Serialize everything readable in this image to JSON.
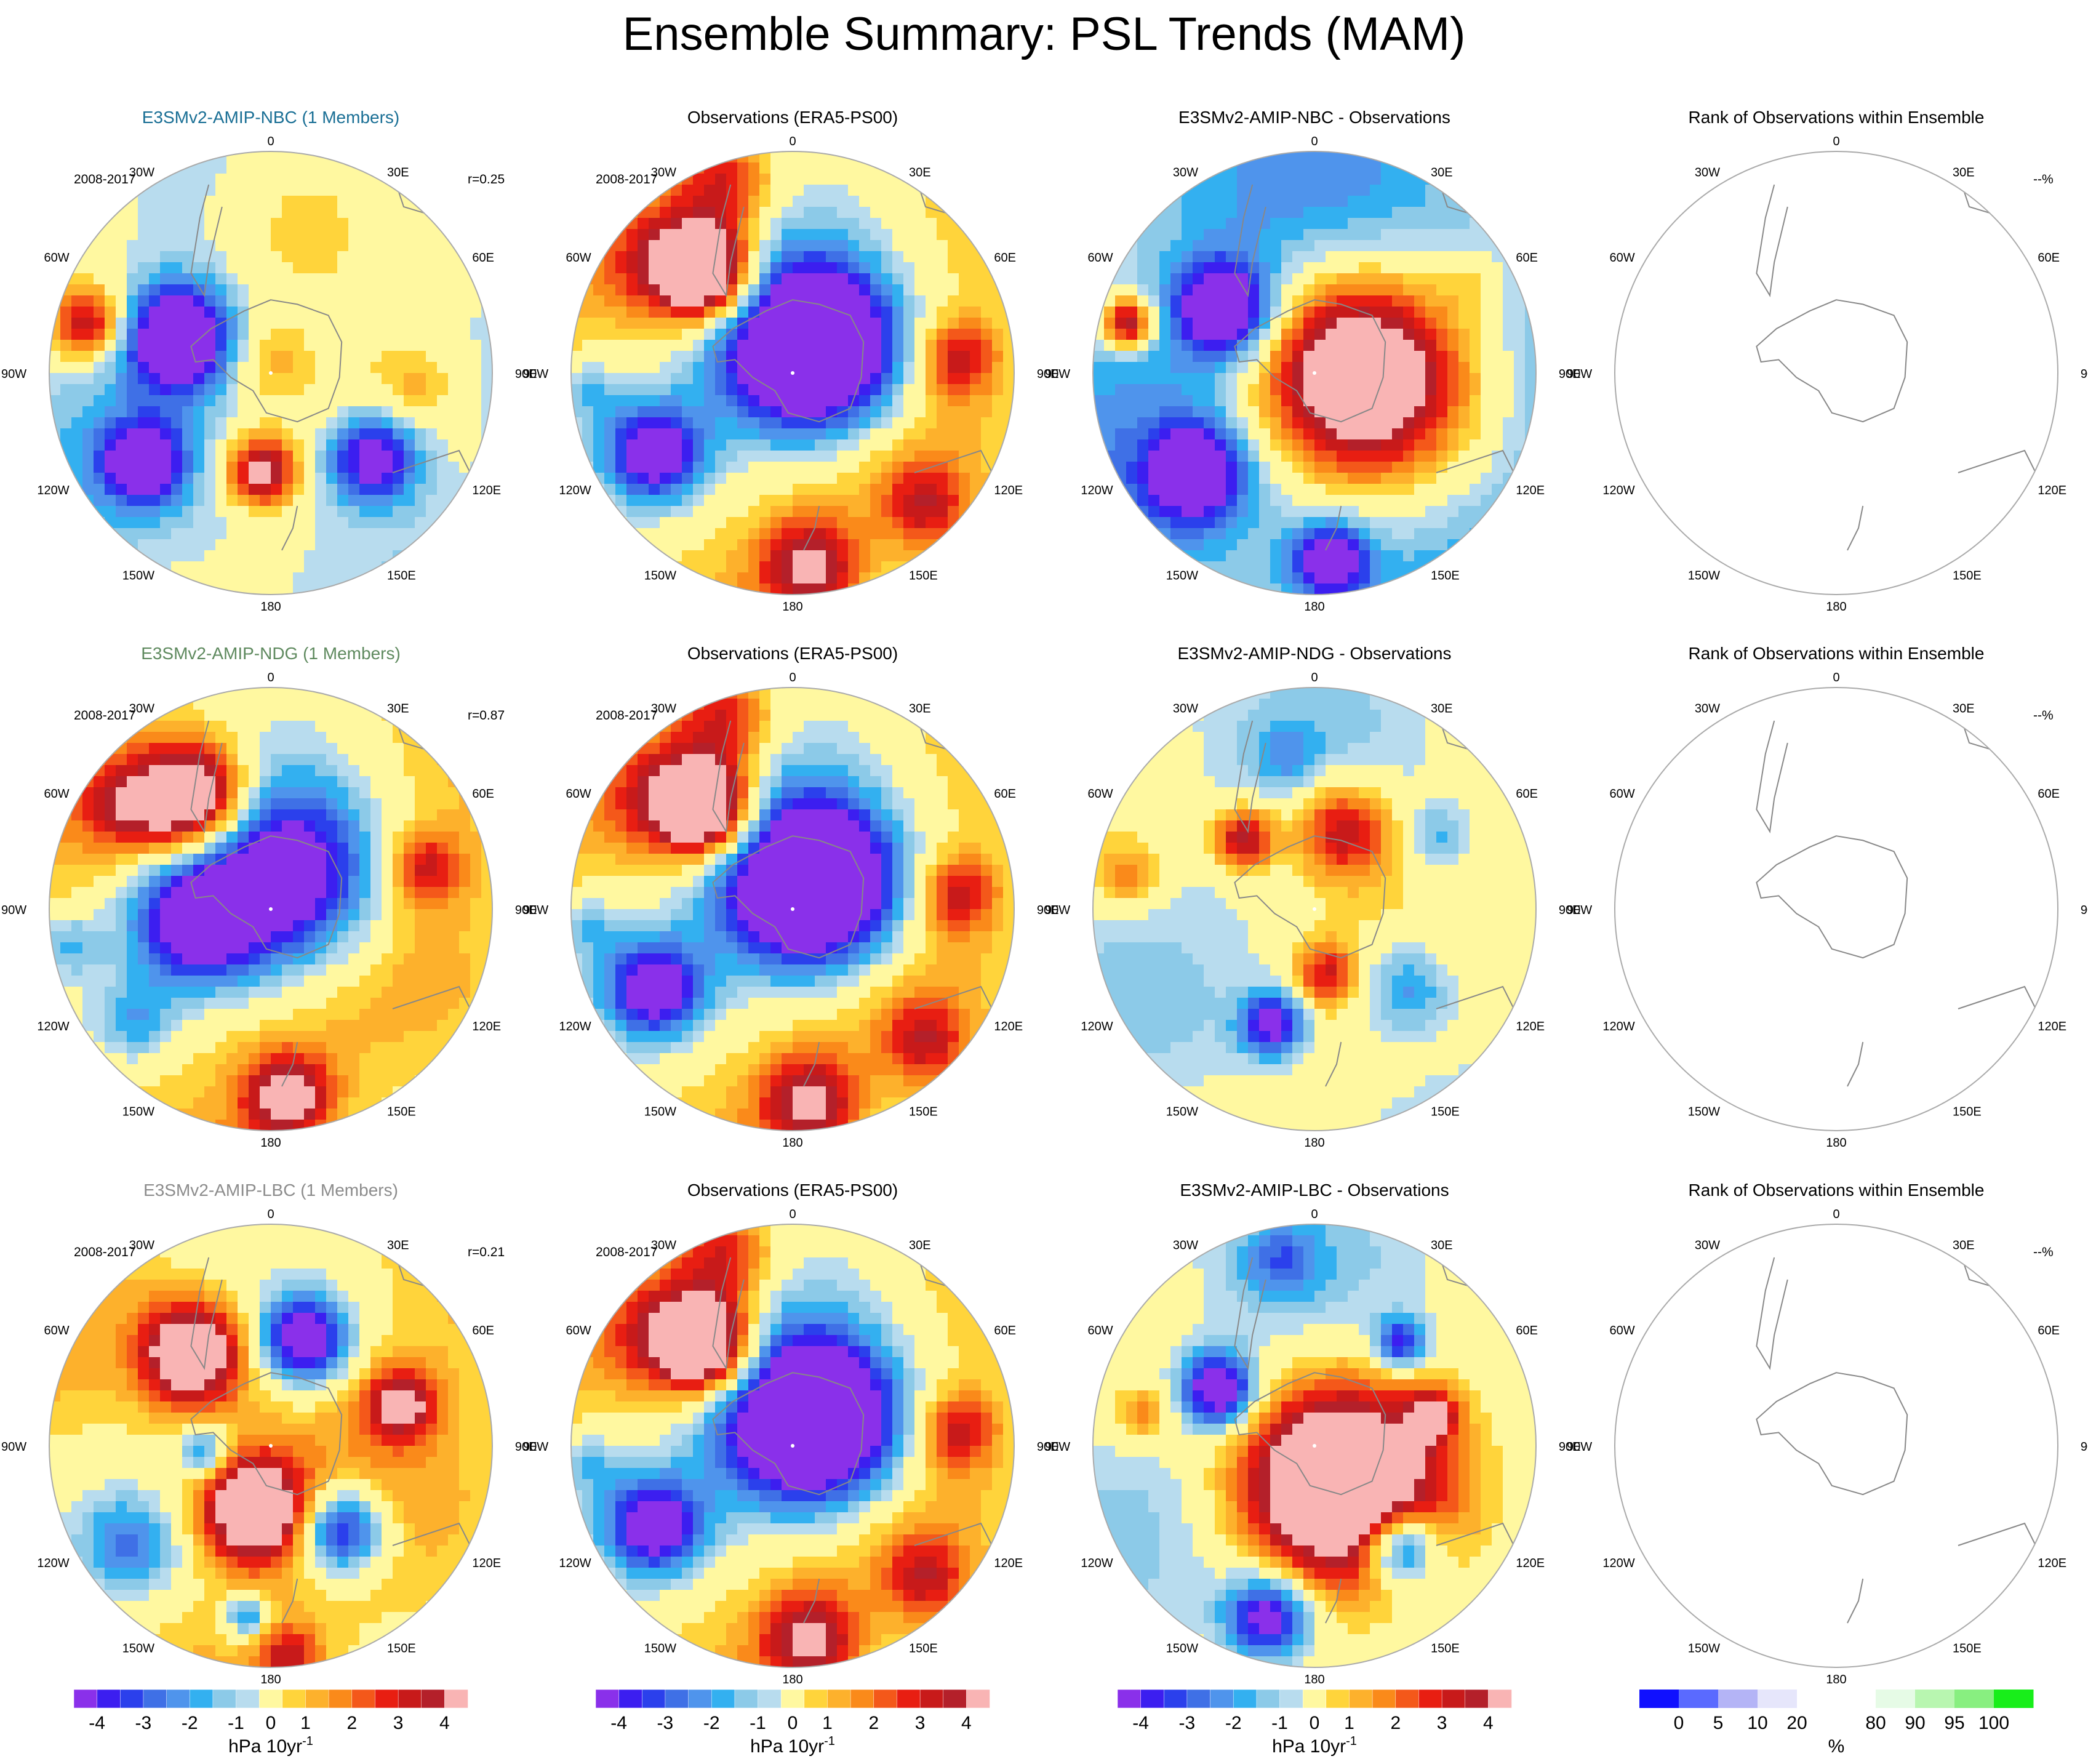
{
  "figure": {
    "title": "Ensemble Summary: PSL Trends (MAM)",
    "colors": {
      "trend_scale": [
        "#8a30ea",
        "#3c1ef0",
        "#2b40ec",
        "#3f70e6",
        "#4f94ec",
        "#33b0f0",
        "#8ccae8",
        "#b8dcee",
        "#fff8a0",
        "#ffd43b",
        "#fdb12c",
        "#fa8a1a",
        "#f4581a",
        "#e81e12",
        "#c81a1a",
        "#b4202a",
        "#f9b4b4"
      ],
      "rank_scale": [
        "#1010ff",
        "#5a6aff",
        "#b4b4f6",
        "#e6e6fb",
        "#ffffff",
        "#ffffff",
        "#e6fbe6",
        "#b8f6b0",
        "#88ef80",
        "#18ee1a"
      ],
      "land": "#ffc4c4",
      "outline": "#aaaaaa"
    }
  },
  "chart_data": [
    {
      "type": "heatmap",
      "panel": "model-r1",
      "title": "E3SMv2-AMIP-NBC (1 Members)",
      "title_color": "#1a6f95",
      "period": "2008-2017",
      "corr": "r=0.25",
      "pattern": "nbc",
      "projection": "south-polar-stereographic"
    },
    {
      "type": "heatmap",
      "panel": "obs-r1",
      "title": "Observations (ERA5-PS00)",
      "title_color": "#000000",
      "period": "2008-2017",
      "pattern": "obs",
      "projection": "south-polar-stereographic"
    },
    {
      "type": "heatmap",
      "panel": "diff-r1",
      "title": "E3SMv2-AMIP-NBC - Observations",
      "title_color": "#000000",
      "pattern": "diff_nbc",
      "projection": "south-polar-stereographic"
    },
    {
      "type": "heatmap",
      "panel": "rank-r1",
      "title": "Rank of Observations within Ensemble",
      "title_color": "#000000",
      "pct": "--%",
      "pattern": "blank",
      "projection": "south-polar-stereographic"
    },
    {
      "type": "heatmap",
      "panel": "model-r2",
      "title": "E3SMv2-AMIP-NDG (1 Members)",
      "title_color": "#5f8a5f",
      "period": "2008-2017",
      "corr": "r=0.87",
      "pattern": "ndg",
      "projection": "south-polar-stereographic"
    },
    {
      "type": "heatmap",
      "panel": "obs-r2",
      "title": "Observations (ERA5-PS00)",
      "title_color": "#000000",
      "period": "2008-2017",
      "pattern": "obs",
      "projection": "south-polar-stereographic"
    },
    {
      "type": "heatmap",
      "panel": "diff-r2",
      "title": "E3SMv2-AMIP-NDG - Observations",
      "title_color": "#000000",
      "pattern": "diff_ndg",
      "projection": "south-polar-stereographic"
    },
    {
      "type": "heatmap",
      "panel": "rank-r2",
      "title": "Rank of Observations within Ensemble",
      "title_color": "#000000",
      "pct": "--%",
      "pattern": "blank",
      "projection": "south-polar-stereographic"
    },
    {
      "type": "heatmap",
      "panel": "model-r3",
      "title": "E3SMv2-AMIP-LBC (1 Members)",
      "title_color": "#8c8c8c",
      "period": "2008-2017",
      "corr": "r=0.21",
      "pattern": "lbc",
      "projection": "south-polar-stereographic"
    },
    {
      "type": "heatmap",
      "panel": "obs-r3",
      "title": "Observations (ERA5-PS00)",
      "title_color": "#000000",
      "period": "2008-2017",
      "pattern": "obs",
      "projection": "south-polar-stereographic"
    },
    {
      "type": "heatmap",
      "panel": "diff-r3",
      "title": "E3SMv2-AMIP-LBC - Observations",
      "title_color": "#000000",
      "pattern": "diff_lbc",
      "projection": "south-polar-stereographic"
    },
    {
      "type": "heatmap",
      "panel": "rank-r3",
      "title": "Rank of Observations within Ensemble",
      "title_color": "#000000",
      "pct": "--%",
      "pattern": "blank",
      "projection": "south-polar-stereographic"
    }
  ],
  "patterns": {
    "obs": {
      "base": 0.6,
      "blobs": [
        {
          "lon": 10,
          "r": 0.12,
          "s": -6.0,
          "w": 0.3
        },
        {
          "lon": 60,
          "r": 0.2,
          "s": -4.0,
          "w": 0.24
        },
        {
          "lon": -40,
          "r": 0.58,
          "s": 6.0,
          "w": 0.15
        },
        {
          "lon": -48,
          "r": 0.75,
          "s": 3.0,
          "w": 0.18
        },
        {
          "lon": -120,
          "r": 0.72,
          "s": -5.0,
          "w": 0.15
        },
        {
          "lon": 175,
          "r": 0.88,
          "s": 3.8,
          "w": 0.16
        },
        {
          "lon": 135,
          "r": 0.85,
          "s": 2.8,
          "w": 0.14
        },
        {
          "lon": -20,
          "r": 0.9,
          "s": 3.0,
          "w": 0.16
        },
        {
          "lon": 85,
          "r": 0.75,
          "s": 2.8,
          "w": 0.12
        },
        {
          "lon": -95,
          "r": 0.92,
          "s": -1.5,
          "w": 0.1
        }
      ]
    },
    "nbc": {
      "base": -0.6,
      "blobs": [
        {
          "lon": -70,
          "r": 0.45,
          "s": -6.0,
          "w": 0.17
        },
        {
          "lon": -125,
          "r": 0.7,
          "s": -5.0,
          "w": 0.13
        },
        {
          "lon": 130,
          "r": 0.6,
          "s": -5.0,
          "w": 0.15
        },
        {
          "lon": -175,
          "r": 0.45,
          "s": 4.8,
          "w": 0.11
        },
        {
          "lon": -75,
          "r": 0.85,
          "s": 4.0,
          "w": 0.12
        },
        {
          "lon": 10,
          "r": 0.7,
          "s": 2.2,
          "w": 0.3
        },
        {
          "lon": -20,
          "r": 0.05,
          "s": 1.4,
          "w": 0.12
        },
        {
          "lon": 95,
          "r": 0.65,
          "s": 1.2,
          "w": 0.12
        }
      ]
    },
    "ndg": {
      "base": 0.8,
      "blobs": [
        {
          "lon": 30,
          "r": 0.15,
          "s": -6.5,
          "w": 0.3
        },
        {
          "lon": -100,
          "r": 0.35,
          "s": -5.0,
          "w": 0.2
        },
        {
          "lon": -35,
          "r": 0.62,
          "s": 6.5,
          "w": 0.17
        },
        {
          "lon": -55,
          "r": 0.8,
          "s": 2.5,
          "w": 0.14
        },
        {
          "lon": 175,
          "r": 0.85,
          "s": 4.2,
          "w": 0.14
        },
        {
          "lon": 75,
          "r": 0.72,
          "s": 2.8,
          "w": 0.12
        },
        {
          "lon": -100,
          "r": 0.92,
          "s": -1.6,
          "w": 0.1
        },
        {
          "lon": -130,
          "r": 0.8,
          "s": -1.8,
          "w": 0.12
        }
      ]
    },
    "lbc": {
      "base": 0.7,
      "blobs": [
        {
          "lon": -40,
          "r": 0.55,
          "s": 6.0,
          "w": 0.16
        },
        {
          "lon": -165,
          "r": 0.3,
          "s": 6.0,
          "w": 0.16
        },
        {
          "lon": 18,
          "r": 0.5,
          "s": -5.5,
          "w": 0.14
        },
        {
          "lon": 140,
          "r": 0.5,
          "s": -5.0,
          "w": 0.14
        },
        {
          "lon": -95,
          "r": 0.3,
          "s": -3.0,
          "w": 0.08
        },
        {
          "lon": 72,
          "r": 0.62,
          "s": 4.0,
          "w": 0.11
        },
        {
          "lon": -125,
          "r": 0.78,
          "s": -2.4,
          "w": 0.16
        },
        {
          "lon": -172,
          "r": 0.78,
          "s": -3.0,
          "w": 0.07
        },
        {
          "lon": 175,
          "r": 0.95,
          "s": 2.6,
          "w": 0.1
        }
      ]
    },
    "diff_nbc": {
      "base": -1.5,
      "blobs": [
        {
          "lon": 90,
          "r": 0.2,
          "s": 7.0,
          "w": 0.33
        },
        {
          "lon": -55,
          "r": 0.5,
          "s": -5.5,
          "w": 0.15
        },
        {
          "lon": -130,
          "r": 0.7,
          "s": -5.0,
          "w": 0.14
        },
        {
          "lon": 175,
          "r": 0.85,
          "s": -4.5,
          "w": 0.12
        },
        {
          "lon": -75,
          "r": 0.87,
          "s": 5.0,
          "w": 0.08
        },
        {
          "lon": 60,
          "r": 0.82,
          "s": 1.0,
          "w": 0.1
        }
      ]
    },
    "diff_ndg": {
      "base": -0.3,
      "blobs": [
        {
          "lon": 20,
          "r": 0.38,
          "s": 3.8,
          "w": 0.16
        },
        {
          "lon": -45,
          "r": 0.45,
          "s": 4.2,
          "w": 0.1
        },
        {
          "lon": 170,
          "r": 0.3,
          "s": 3.0,
          "w": 0.1
        },
        {
          "lon": -160,
          "r": 0.55,
          "s": -4.5,
          "w": 0.1
        },
        {
          "lon": 130,
          "r": 0.55,
          "s": -2.6,
          "w": 0.15
        },
        {
          "lon": -80,
          "r": 0.85,
          "s": 2.2,
          "w": 0.1
        },
        {
          "lon": 60,
          "r": 0.65,
          "s": -1.6,
          "w": 0.1
        },
        {
          "lon": -10,
          "r": 0.7,
          "s": -1.4,
          "w": 0.1
        }
      ]
    },
    "diff_lbc": {
      "base": -0.3,
      "blobs": [
        {
          "lon": 150,
          "r": 0.2,
          "s": 7.0,
          "w": 0.32
        },
        {
          "lon": -60,
          "r": 0.5,
          "s": -5.5,
          "w": 0.12
        },
        {
          "lon": 140,
          "r": 0.6,
          "s": -5.0,
          "w": 0.12
        },
        {
          "lon": -165,
          "r": 0.8,
          "s": -5.0,
          "w": 0.14
        },
        {
          "lon": 40,
          "r": 0.6,
          "s": -4.0,
          "w": 0.08
        },
        {
          "lon": 75,
          "r": 0.55,
          "s": 3.5,
          "w": 0.08
        },
        {
          "lon": -80,
          "r": 0.78,
          "s": 2.0,
          "w": 0.09
        },
        {
          "lon": -10,
          "r": 0.85,
          "s": -2.0,
          "w": 0.12
        }
      ]
    }
  },
  "map_labels": {
    "top": "0",
    "bottom": "180",
    "left": "90W",
    "right": "90E",
    "upper_left": "30W",
    "upper_right": "30E",
    "mid_left": "60W",
    "mid_right": "60E",
    "lower_left": "120W",
    "lower_right": "120E",
    "bottom_left": "150W",
    "bottom_right": "150E"
  },
  "colorbars": {
    "trend": {
      "ticks": [
        "-4",
        "-3",
        "-2",
        "-1",
        "0",
        "1",
        "2",
        "3",
        "4"
      ],
      "label": "hPa 10yr",
      "label_sup": "-1"
    },
    "rank": {
      "ticks": [
        "0",
        "5",
        "10",
        "20",
        "80",
        "90",
        "95",
        "100"
      ],
      "label": "%"
    }
  }
}
